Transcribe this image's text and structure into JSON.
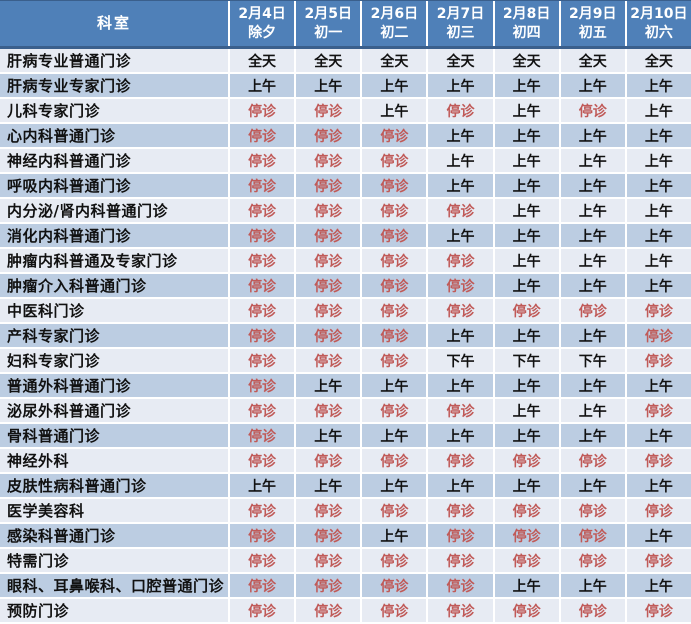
{
  "table": {
    "corner_header": "科室",
    "closed_label": "停诊",
    "columns": [
      {
        "date": "2月4日",
        "day": "除夕"
      },
      {
        "date": "2月5日",
        "day": "初一"
      },
      {
        "date": "2月6日",
        "day": "初二"
      },
      {
        "date": "2月7日",
        "day": "初三"
      },
      {
        "date": "2月8日",
        "day": "初四"
      },
      {
        "date": "2月9日",
        "day": "初五"
      },
      {
        "date": "2月10日",
        "day": "初六"
      }
    ],
    "rows": [
      {
        "department": "肝病专业普通门诊",
        "cells": [
          "全天",
          "全天",
          "全天",
          "全天",
          "全天",
          "全天",
          "全天"
        ]
      },
      {
        "department": "肝病专业专家门诊",
        "cells": [
          "上午",
          "上午",
          "上午",
          "上午",
          "上午",
          "上午",
          "上午"
        ]
      },
      {
        "department": "儿科专家门诊",
        "cells": [
          "停诊",
          "停诊",
          "上午",
          "停诊",
          "上午",
          "停诊",
          "上午"
        ]
      },
      {
        "department": "心内科普通门诊",
        "cells": [
          "停诊",
          "停诊",
          "停诊",
          "上午",
          "上午",
          "上午",
          "上午"
        ]
      },
      {
        "department": "神经内科普通门诊",
        "cells": [
          "停诊",
          "停诊",
          "停诊",
          "上午",
          "上午",
          "上午",
          "上午"
        ]
      },
      {
        "department": "呼吸内科普通门诊",
        "cells": [
          "停诊",
          "停诊",
          "停诊",
          "上午",
          "上午",
          "上午",
          "上午"
        ]
      },
      {
        "department": "内分泌/肾内科普通门诊",
        "cells": [
          "停诊",
          "停诊",
          "停诊",
          "停诊",
          "上午",
          "上午",
          "上午"
        ]
      },
      {
        "department": "消化内科普通门诊",
        "cells": [
          "停诊",
          "停诊",
          "停诊",
          "上午",
          "上午",
          "上午",
          "上午"
        ]
      },
      {
        "department": "肿瘤内科普通及专家门诊",
        "cells": [
          "停诊",
          "停诊",
          "停诊",
          "停诊",
          "上午",
          "上午",
          "上午"
        ]
      },
      {
        "department": "肿瘤介入科普通门诊",
        "cells": [
          "停诊",
          "停诊",
          "停诊",
          "停诊",
          "上午",
          "上午",
          "上午"
        ]
      },
      {
        "department": "中医科门诊",
        "cells": [
          "停诊",
          "停诊",
          "停诊",
          "停诊",
          "停诊",
          "停诊",
          "停诊"
        ]
      },
      {
        "department": "产科专家门诊",
        "cells": [
          "停诊",
          "停诊",
          "停诊",
          "上午",
          "上午",
          "上午",
          "停诊"
        ]
      },
      {
        "department": "妇科专家门诊",
        "cells": [
          "停诊",
          "停诊",
          "停诊",
          "下午",
          "下午",
          "下午",
          "停诊"
        ]
      },
      {
        "department": "普通外科普通门诊",
        "cells": [
          "停诊",
          "上午",
          "上午",
          "上午",
          "上午",
          "上午",
          "上午"
        ]
      },
      {
        "department": "泌尿外科普通门诊",
        "cells": [
          "停诊",
          "停诊",
          "停诊",
          "停诊",
          "上午",
          "上午",
          "停诊"
        ]
      },
      {
        "department": "骨科普通门诊",
        "cells": [
          "停诊",
          "上午",
          "上午",
          "上午",
          "上午",
          "上午",
          "上午"
        ]
      },
      {
        "department": "神经外科",
        "cells": [
          "停诊",
          "停诊",
          "停诊",
          "停诊",
          "停诊",
          "停诊",
          "停诊"
        ]
      },
      {
        "department": "皮肤性病科普通门诊",
        "cells": [
          "上午",
          "上午",
          "上午",
          "上午",
          "上午",
          "上午",
          "上午"
        ]
      },
      {
        "department": "医学美容科",
        "cells": [
          "停诊",
          "停诊",
          "停诊",
          "停诊",
          "停诊",
          "停诊",
          "停诊"
        ]
      },
      {
        "department": "感染科普通门诊",
        "cells": [
          "停诊",
          "停诊",
          "上午",
          "停诊",
          "停诊",
          "停诊",
          "上午"
        ]
      },
      {
        "department": "特需门诊",
        "cells": [
          "停诊",
          "停诊",
          "停诊",
          "停诊",
          "停诊",
          "停诊",
          "停诊"
        ]
      },
      {
        "department": "眼科、耳鼻喉科、口腔普通门诊",
        "cells": [
          "停诊",
          "停诊",
          "停诊",
          "停诊",
          "上午",
          "上午",
          "上午"
        ]
      },
      {
        "department": "预防门诊",
        "cells": [
          "停诊",
          "停诊",
          "停诊",
          "停诊",
          "停诊",
          "停诊",
          "停诊"
        ]
      }
    ]
  },
  "colors": {
    "header_bg": "#4F80B8",
    "header_border": "#3A5F8C",
    "row_odd": "#E7EBF3",
    "row_even": "#BCCDE2",
    "closed_text": "#C05A58",
    "cell_text": "#111111",
    "header_text": "#FFFFFF"
  }
}
